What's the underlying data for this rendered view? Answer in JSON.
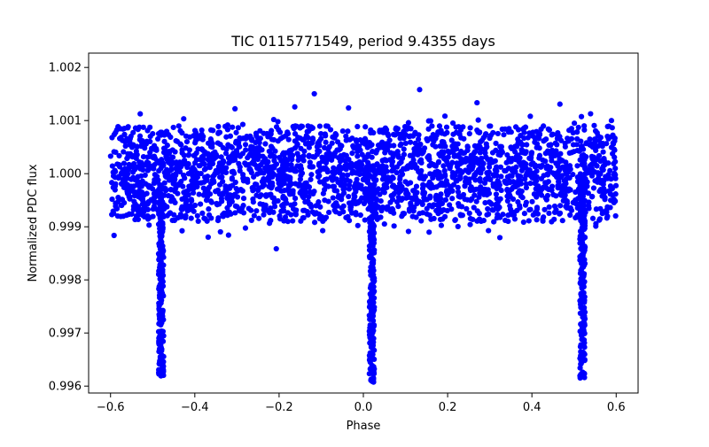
{
  "chart_data": {
    "type": "scatter",
    "title": "TIC 0115771549, period 9.4355 days",
    "xlabel": "Phase",
    "ylabel": "Normalized PDC flux",
    "xlim": [
      -0.652,
      0.652
    ],
    "ylim": [
      0.99587,
      1.00227
    ],
    "grid": false,
    "legend": "none",
    "xticks": [
      -0.6,
      -0.4,
      -0.2,
      0.0,
      0.2,
      0.4,
      0.6
    ],
    "xtick_labels": [
      "−0.6",
      "−0.4",
      "−0.2",
      "0.0",
      "0.2",
      "0.4",
      "0.6"
    ],
    "yticks": [
      0.996,
      0.997,
      0.998,
      0.999,
      1.0,
      1.001,
      1.002
    ],
    "ytick_labels": [
      "0.996",
      "0.997",
      "0.998",
      "0.999",
      "1.000",
      "1.001",
      "1.002"
    ],
    "series": [
      {
        "name": "PDC flux",
        "color": "#0000ff",
        "marker": "circle",
        "phase_range": [
          -0.6,
          0.6
        ],
        "baseline_flux": 1.0,
        "baseline_scatter": 0.00045,
        "baseline_band": [
          0.9991,
          1.0009
        ],
        "outlier_band": [
          0.9982,
          1.0022
        ],
        "eclipses": [
          {
            "center_phase": -0.48,
            "min_flux": 0.99615,
            "width_phase": 0.012
          },
          {
            "center_phase": 0.02,
            "min_flux": 0.99607,
            "width_phase": 0.012
          },
          {
            "center_phase": 0.52,
            "min_flux": 0.99615,
            "width_phase": 0.012
          }
        ]
      }
    ]
  }
}
